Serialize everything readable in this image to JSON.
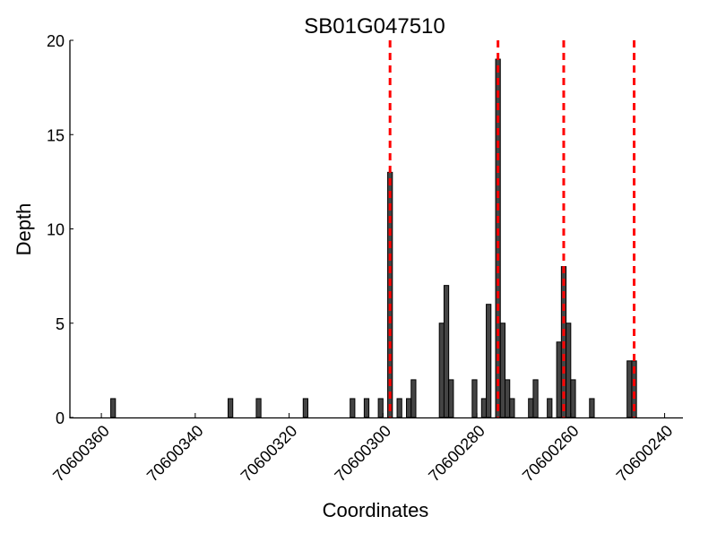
{
  "chart_data": {
    "type": "bar",
    "title": "SB01G047510",
    "xlabel": "Coordinates",
    "ylabel": "Depth",
    "xlim": [
      70600366.7,
      70600236.1
    ],
    "x_reversed": true,
    "ylim": [
      0,
      20
    ],
    "xticks": [
      70600360,
      70600340,
      70600320,
      70600300,
      70600280,
      70600260,
      70600240
    ],
    "yticks": [
      0,
      5,
      10,
      15,
      20
    ],
    "grid": false,
    "bar_color": "#444444",
    "line_color": "#ff0000",
    "bars": [
      {
        "x": 70600358,
        "y": 1
      },
      {
        "x": 70600333,
        "y": 1
      },
      {
        "x": 70600327,
        "y": 1
      },
      {
        "x": 70600317,
        "y": 1
      },
      {
        "x": 70600307,
        "y": 1
      },
      {
        "x": 70600304,
        "y": 1
      },
      {
        "x": 70600301,
        "y": 1
      },
      {
        "x": 70600299,
        "y": 13
      },
      {
        "x": 70600297,
        "y": 1
      },
      {
        "x": 70600295,
        "y": 1
      },
      {
        "x": 70600294,
        "y": 2
      },
      {
        "x": 70600288,
        "y": 5
      },
      {
        "x": 70600287,
        "y": 7
      },
      {
        "x": 70600286,
        "y": 2
      },
      {
        "x": 70600281,
        "y": 2
      },
      {
        "x": 70600279,
        "y": 1
      },
      {
        "x": 70600278,
        "y": 6
      },
      {
        "x": 70600276,
        "y": 19
      },
      {
        "x": 70600275,
        "y": 5
      },
      {
        "x": 70600274,
        "y": 2
      },
      {
        "x": 70600273,
        "y": 1
      },
      {
        "x": 70600269,
        "y": 1
      },
      {
        "x": 70600268,
        "y": 2
      },
      {
        "x": 70600265,
        "y": 1
      },
      {
        "x": 70600263,
        "y": 4
      },
      {
        "x": 70600262,
        "y": 8
      },
      {
        "x": 70600261,
        "y": 5
      },
      {
        "x": 70600260,
        "y": 2
      },
      {
        "x": 70600256,
        "y": 1
      },
      {
        "x": 70600248,
        "y": 3
      },
      {
        "x": 70600247,
        "y": 3
      }
    ],
    "vlines": [
      70600298.5,
      70600275.5,
      70600261.5,
      70600246.5
    ]
  }
}
